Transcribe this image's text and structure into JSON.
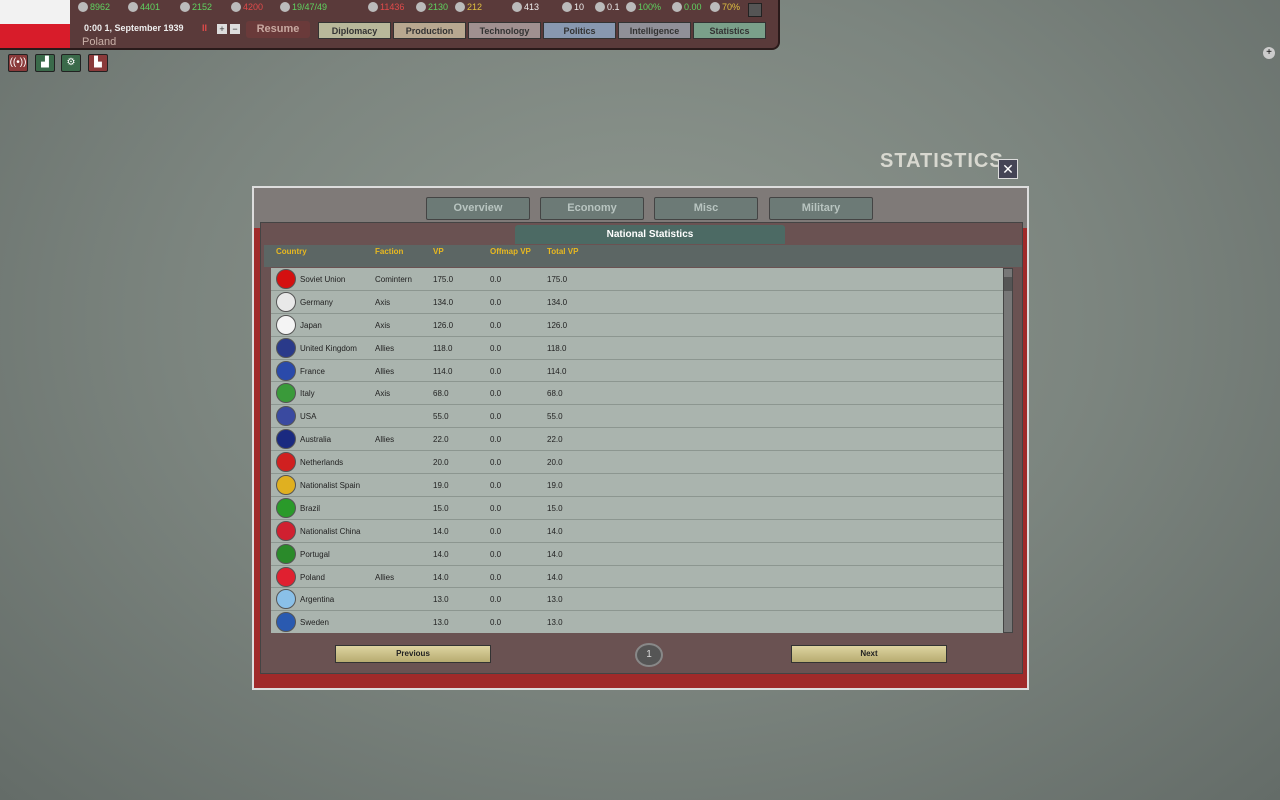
{
  "topbar": {
    "country": "Poland",
    "date": "0:00 1, September 1939",
    "resume": "Resume",
    "resources": [
      {
        "icon": "energy-icon",
        "value": "8962",
        "color": "#5fd35f"
      },
      {
        "icon": "metal-icon",
        "value": "4401",
        "color": "#5fd35f"
      },
      {
        "icon": "rare-materials-icon",
        "value": "2152",
        "color": "#5fd35f"
      },
      {
        "icon": "oil-icon",
        "value": "4200",
        "color": "#e04a4a"
      },
      {
        "icon": "ic-icon",
        "value": "19/47/49",
        "color": "#5fd35f"
      },
      {
        "icon": "supplies-icon",
        "value": "11436",
        "color": "#e04a4a"
      },
      {
        "icon": "fuel-icon",
        "value": "2130",
        "color": "#5fd35f"
      },
      {
        "icon": "money-icon",
        "value": "212",
        "color": "#e0c040"
      },
      {
        "icon": "manpower-icon",
        "value": "413",
        "color": "#eeeeee"
      },
      {
        "icon": "diplomats-icon",
        "value": "10",
        "color": "#eeeeee"
      },
      {
        "icon": "spies-icon",
        "value": "0.1",
        "color": "#eeeeee"
      },
      {
        "icon": "national-unity-icon",
        "value": "100%",
        "color": "#5fd35f"
      },
      {
        "icon": "dissent-icon",
        "value": "0.00",
        "color": "#5fd35f"
      },
      {
        "icon": "neutrality-icon",
        "value": "70%",
        "color": "#e0c040"
      }
    ],
    "nav": [
      "Diplomacy",
      "Production",
      "Technology",
      "Politics",
      "Intelligence",
      "Statistics"
    ]
  },
  "dialog": {
    "title": "STATISTICS",
    "tabs": [
      "Overview",
      "Economy",
      "Misc",
      "Military"
    ],
    "subtitle": "National Statistics",
    "columns": [
      "Country",
      "Faction",
      "VP",
      "Offmap VP",
      "Total VP"
    ],
    "rows": [
      [
        "Soviet Union",
        "Comintern",
        "175.0",
        "0.0",
        "175.0"
      ],
      [
        "Germany",
        "Axis",
        "134.0",
        "0.0",
        "134.0"
      ],
      [
        "Japan",
        "Axis",
        "126.0",
        "0.0",
        "126.0"
      ],
      [
        "United Kingdom",
        "Allies",
        "118.0",
        "0.0",
        "118.0"
      ],
      [
        "France",
        "Allies",
        "114.0",
        "0.0",
        "114.0"
      ],
      [
        "Italy",
        "Axis",
        "68.0",
        "0.0",
        "68.0"
      ],
      [
        "USA",
        "",
        "55.0",
        "0.0",
        "55.0"
      ],
      [
        "Australia",
        "Allies",
        "22.0",
        "0.0",
        "22.0"
      ],
      [
        "Netherlands",
        "",
        "20.0",
        "0.0",
        "20.0"
      ],
      [
        "Nationalist Spain",
        "",
        "19.0",
        "0.0",
        "19.0"
      ],
      [
        "Brazil",
        "",
        "15.0",
        "0.0",
        "15.0"
      ],
      [
        "Nationalist China",
        "",
        "14.0",
        "0.0",
        "14.0"
      ],
      [
        "Portugal",
        "",
        "14.0",
        "0.0",
        "14.0"
      ],
      [
        "Poland",
        "Allies",
        "14.0",
        "0.0",
        "14.0"
      ],
      [
        "Argentina",
        "",
        "13.0",
        "0.0",
        "13.0"
      ],
      [
        "Sweden",
        "",
        "13.0",
        "0.0",
        "13.0"
      ]
    ],
    "flags": [
      "#d41010",
      "#e8e8e8",
      "#f4f4f4",
      "#2a3a8a",
      "#2a4aaa",
      "#3a9a3a",
      "#3a4aa0",
      "#1a2a80",
      "#d02020",
      "#e0b020",
      "#2a9a2a",
      "#d02030",
      "#2a8a2a",
      "#e02030",
      "#8ac0e8",
      "#2a5ab0"
    ],
    "previous": "Previous",
    "next": "Next",
    "page": "1"
  }
}
